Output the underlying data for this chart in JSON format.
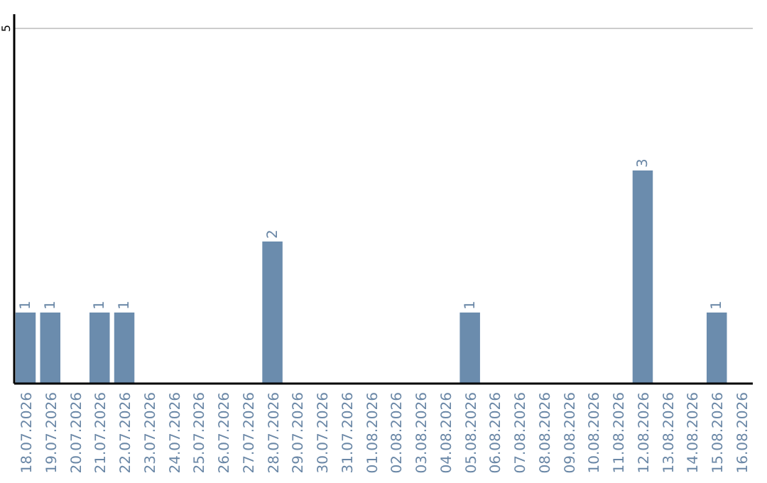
{
  "chart_data": {
    "type": "bar",
    "categories": [
      "18.07.2026",
      "19.07.2026",
      "20.07.2026",
      "21.07.2026",
      "22.07.2026",
      "23.07.2026",
      "24.07.2026",
      "25.07.2026",
      "26.07.2026",
      "27.07.2026",
      "28.07.2026",
      "29.07.2026",
      "30.07.2026",
      "31.07.2026",
      "01.08.2026",
      "02.08.2026",
      "03.08.2026",
      "04.08.2026",
      "05.08.2026",
      "06.08.2026",
      "07.08.2026",
      "08.08.2026",
      "09.08.2026",
      "10.08.2026",
      "11.08.2026",
      "12.08.2026",
      "13.08.2026",
      "14.08.2026",
      "15.08.2026",
      "16.08.2026"
    ],
    "values": [
      1,
      1,
      0,
      1,
      1,
      0,
      0,
      0,
      0,
      0,
      2,
      0,
      0,
      0,
      0,
      0,
      0,
      0,
      1,
      0,
      0,
      0,
      0,
      0,
      0,
      3,
      0,
      0,
      1,
      0
    ],
    "value_labels": [
      "1",
      "1",
      null,
      "1",
      "1",
      null,
      null,
      null,
      null,
      null,
      "2",
      null,
      null,
      null,
      null,
      null,
      null,
      null,
      "1",
      null,
      null,
      null,
      null,
      null,
      null,
      "3",
      null,
      null,
      "1",
      null
    ],
    "color": "#6b8cad",
    "ylim": [
      0,
      5.2
    ],
    "yticks": [
      5
    ],
    "grid": "y"
  }
}
